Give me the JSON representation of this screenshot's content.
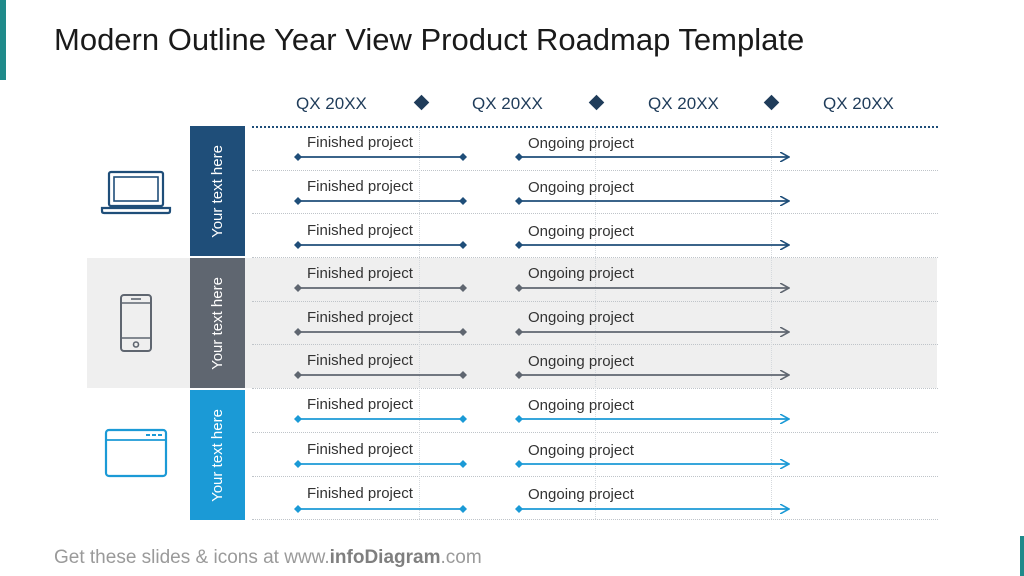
{
  "title": "Modern Outline Year View Product Roadmap Template",
  "quarters": [
    "QX 20XX",
    "QX 20XX",
    "QX 20XX",
    "QX 20XX"
  ],
  "groups": [
    {
      "tab_text": "Your text here",
      "icon": "laptop-icon",
      "color": "#1f4e79",
      "rows": [
        {
          "finished": "Finished project",
          "ongoing": "Ongoing project"
        },
        {
          "finished": "Finished project",
          "ongoing": "Ongoing project"
        },
        {
          "finished": "Finished project",
          "ongoing": "Ongoing project"
        }
      ]
    },
    {
      "tab_text": "Your text here",
      "icon": "smartphone-icon",
      "color": "#5f6670",
      "rows": [
        {
          "finished": "Finished project",
          "ongoing": "Ongoing project"
        },
        {
          "finished": "Finished project",
          "ongoing": "Ongoing project"
        },
        {
          "finished": "Finished project",
          "ongoing": "Ongoing project"
        }
      ]
    },
    {
      "tab_text": "Your text here",
      "icon": "browser-window-icon",
      "color": "#1b9ad6",
      "rows": [
        {
          "finished": "Finished project",
          "ongoing": "Ongoing project"
        },
        {
          "finished": "Finished project",
          "ongoing": "Ongoing project"
        },
        {
          "finished": "Finished project",
          "ongoing": "Ongoing project"
        }
      ]
    }
  ],
  "footer": {
    "prefix": "Get these slides & icons at www.",
    "brand": "infoDiagram",
    "suffix": ".com"
  },
  "colors": {
    "accent": "#1f8a8a",
    "header_text": "#1f3c5a",
    "middle_band": "#efefef"
  }
}
